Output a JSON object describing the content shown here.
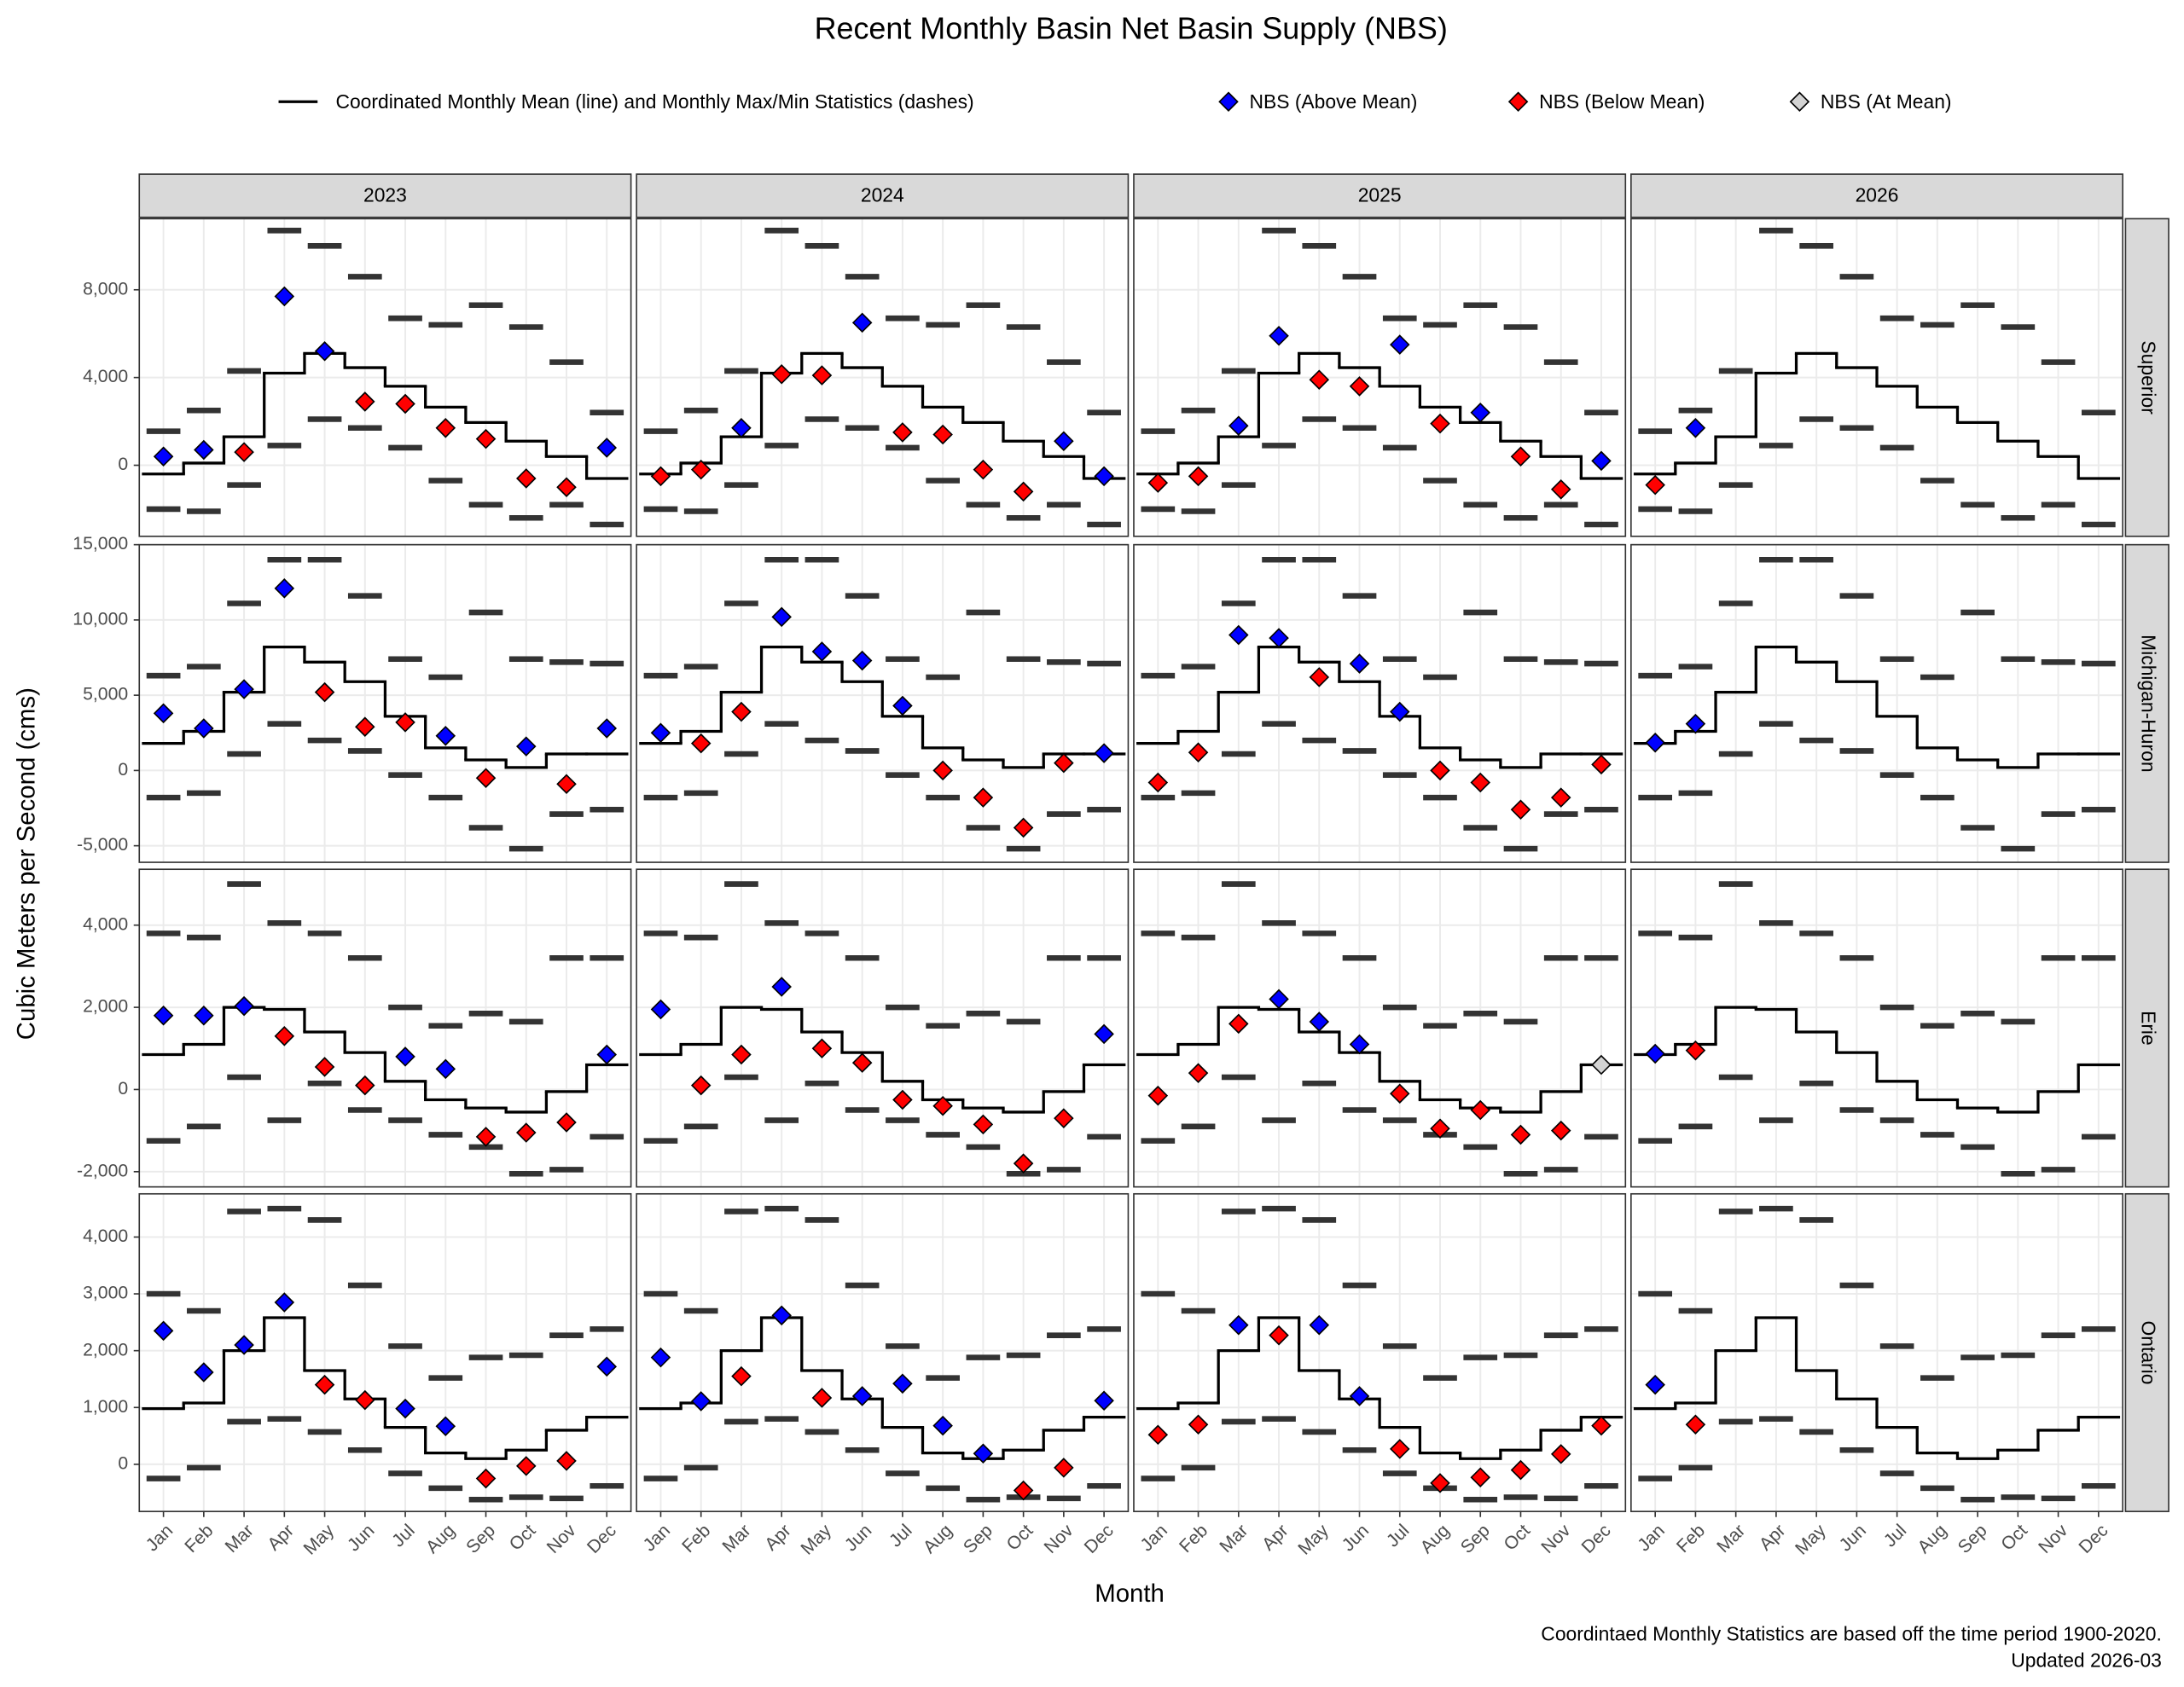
{
  "chart_data": {
    "type": "facet-step",
    "title": "Recent Monthly Basin Net Basin Supply (NBS)",
    "x_label": "Month",
    "y_label": "Cubic Meters per Second (cms)",
    "caption": [
      "Coordintaed Monthly Statistics are based off the time period 1900-2020.",
      "Updated 2026-03"
    ],
    "grid": true,
    "stat_color": "#333333",
    "legend": [
      {
        "name": "Coordinated Monthly Mean (line) and Monthly Max/Min Statistics (dashes)",
        "marker": "line",
        "color": "#000000"
      },
      {
        "name": "NBS (Above Mean)",
        "marker": "diamond",
        "color": "#0000ff"
      },
      {
        "name": "NBS (Below Mean)",
        "marker": "diamond",
        "color": "#ff0000"
      },
      {
        "name": "NBS (At Mean)",
        "marker": "diamond",
        "color": "#d3d3d3"
      }
    ],
    "categories": [
      "Jan",
      "Feb",
      "Mar",
      "Apr",
      "May",
      "Jun",
      "Jul",
      "Aug",
      "Sep",
      "Oct",
      "Nov",
      "Dec"
    ],
    "years": [
      "2023",
      "2024",
      "2025",
      "2026"
    ],
    "lakes": [
      {
        "name": "Superior",
        "ylim": [
          -3240,
          11240
        ],
        "yticks": [
          0,
          {
            "value": 4000,
            "label": "4,000"
          },
          {
            "value": 8000,
            "label": "8,000"
          }
        ],
        "mean": [
          -400,
          100,
          1300,
          4200,
          5100,
          4450,
          3600,
          2650,
          1950,
          1100,
          400,
          -600
        ],
        "max": [
          1550,
          2500,
          4300,
          10700,
          10000,
          8600,
          6700,
          6400,
          7300,
          6300,
          4700,
          2400
        ],
        "min": [
          -2000,
          -2100,
          -900,
          900,
          2100,
          1700,
          800,
          -700,
          -1800,
          -2400,
          -1800,
          -2700
        ],
        "nbs": [
          [
            400,
            700,
            600,
            7700,
            5200,
            2900,
            2800,
            1700,
            1200,
            -600,
            -1000,
            800
          ],
          [
            -500,
            -200,
            1700,
            4150,
            4100,
            6500,
            1500,
            1400,
            -200,
            -1200,
            1100,
            -500
          ],
          [
            -800,
            -500,
            1800,
            5900,
            3900,
            3600,
            5500,
            1900,
            2400,
            400,
            -1100,
            200
          ],
          [
            -900,
            1700,
            null,
            null,
            null,
            null,
            null,
            null,
            null,
            null,
            null,
            null
          ]
        ]
      },
      {
        "name": "Michigan-Huron",
        "ylim": [
          -6100,
          15000
        ],
        "yticks": [
          {
            "value": -5000,
            "label": "-5,000"
          },
          0,
          {
            "value": 5000,
            "label": "5,000"
          },
          {
            "value": 10000,
            "label": "10,000"
          },
          {
            "value": 15000,
            "label": "15,000"
          }
        ],
        "mean": [
          1800,
          2600,
          5200,
          8200,
          7200,
          5900,
          3600,
          1500,
          700,
          200,
          1100,
          1100
        ],
        "max": [
          6300,
          6900,
          11100,
          14000,
          14000,
          11600,
          7400,
          6200,
          10500,
          7400,
          7200,
          7100
        ],
        "min": [
          -1800,
          -1500,
          1100,
          3100,
          2000,
          1300,
          -300,
          -1800,
          -3800,
          -5200,
          -2900,
          -2600
        ],
        "nbs": [
          [
            3800,
            2800,
            5400,
            12100,
            5200,
            2900,
            3200,
            2300,
            -500,
            1600,
            -900,
            2800
          ],
          [
            2500,
            1800,
            3900,
            10200,
            7900,
            7300,
            4300,
            0,
            -1800,
            -3800,
            500,
            1150
          ],
          [
            -800,
            1200,
            9000,
            8800,
            6200,
            7100,
            3900,
            0,
            -800,
            -2600,
            -1800,
            400
          ],
          [
            1850,
            3100,
            null,
            null,
            null,
            null,
            null,
            null,
            null,
            null,
            null,
            null
          ]
        ]
      },
      {
        "name": "Erie",
        "ylim": [
          -2370,
          5360
        ],
        "yticks": [
          {
            "value": -2000,
            "label": "-2,000"
          },
          0,
          {
            "value": 2000,
            "label": "2,000"
          },
          {
            "value": 4000,
            "label": "4,000"
          }
        ],
        "mean": [
          850,
          1100,
          2000,
          1950,
          1400,
          900,
          200,
          -250,
          -450,
          -550,
          -50,
          600
        ],
        "max": [
          3800,
          3700,
          5000,
          4050,
          3800,
          3200,
          2000,
          1550,
          1850,
          1650,
          3200,
          3200
        ],
        "min": [
          -1250,
          -900,
          300,
          -750,
          150,
          -500,
          -750,
          -1100,
          -1400,
          -2050,
          -1950,
          -1150
        ],
        "nbs": [
          [
            1800,
            1800,
            2030,
            1300,
            550,
            100,
            800,
            500,
            -1150,
            -1050,
            -800,
            850
          ],
          [
            1950,
            100,
            850,
            2500,
            1000,
            650,
            -250,
            -400,
            -850,
            -1800,
            -700,
            1350
          ],
          [
            -150,
            400,
            1600,
            2200,
            1650,
            1100,
            -100,
            -950,
            -500,
            -1100,
            -1000,
            600
          ],
          [
            870,
            950,
            null,
            null,
            null,
            null,
            null,
            null,
            null,
            null,
            null,
            null
          ]
        ]
      },
      {
        "name": "Ontario",
        "ylim": [
          -830,
          4760
        ],
        "yticks": [
          0,
          {
            "value": 1000,
            "label": "1,000"
          },
          {
            "value": 2000,
            "label": "2,000"
          },
          {
            "value": 3000,
            "label": "3,000"
          },
          {
            "value": 4000,
            "label": "4,000"
          }
        ],
        "mean": [
          980,
          1080,
          2000,
          2580,
          1650,
          1150,
          650,
          200,
          100,
          250,
          600,
          830
        ],
        "max": [
          3000,
          2700,
          4450,
          4500,
          4300,
          3150,
          2080,
          1520,
          1880,
          1920,
          2270,
          2380
        ],
        "min": [
          -250,
          -60,
          750,
          800,
          570,
          250,
          -160,
          -420,
          -620,
          -580,
          -600,
          -380
        ],
        "nbs": [
          [
            2350,
            1620,
            2100,
            2850,
            1400,
            1130,
            980,
            670,
            -250,
            -30,
            60,
            1720
          ],
          [
            1880,
            1110,
            1550,
            2620,
            1170,
            1200,
            1420,
            680,
            190,
            -460,
            -60,
            1120
          ],
          [
            520,
            700,
            2450,
            2270,
            2450,
            1200,
            270,
            -330,
            -230,
            -100,
            180,
            680
          ],
          [
            1400,
            700,
            null,
            null,
            null,
            null,
            null,
            null,
            null,
            null,
            null,
            null
          ]
        ]
      }
    ]
  }
}
